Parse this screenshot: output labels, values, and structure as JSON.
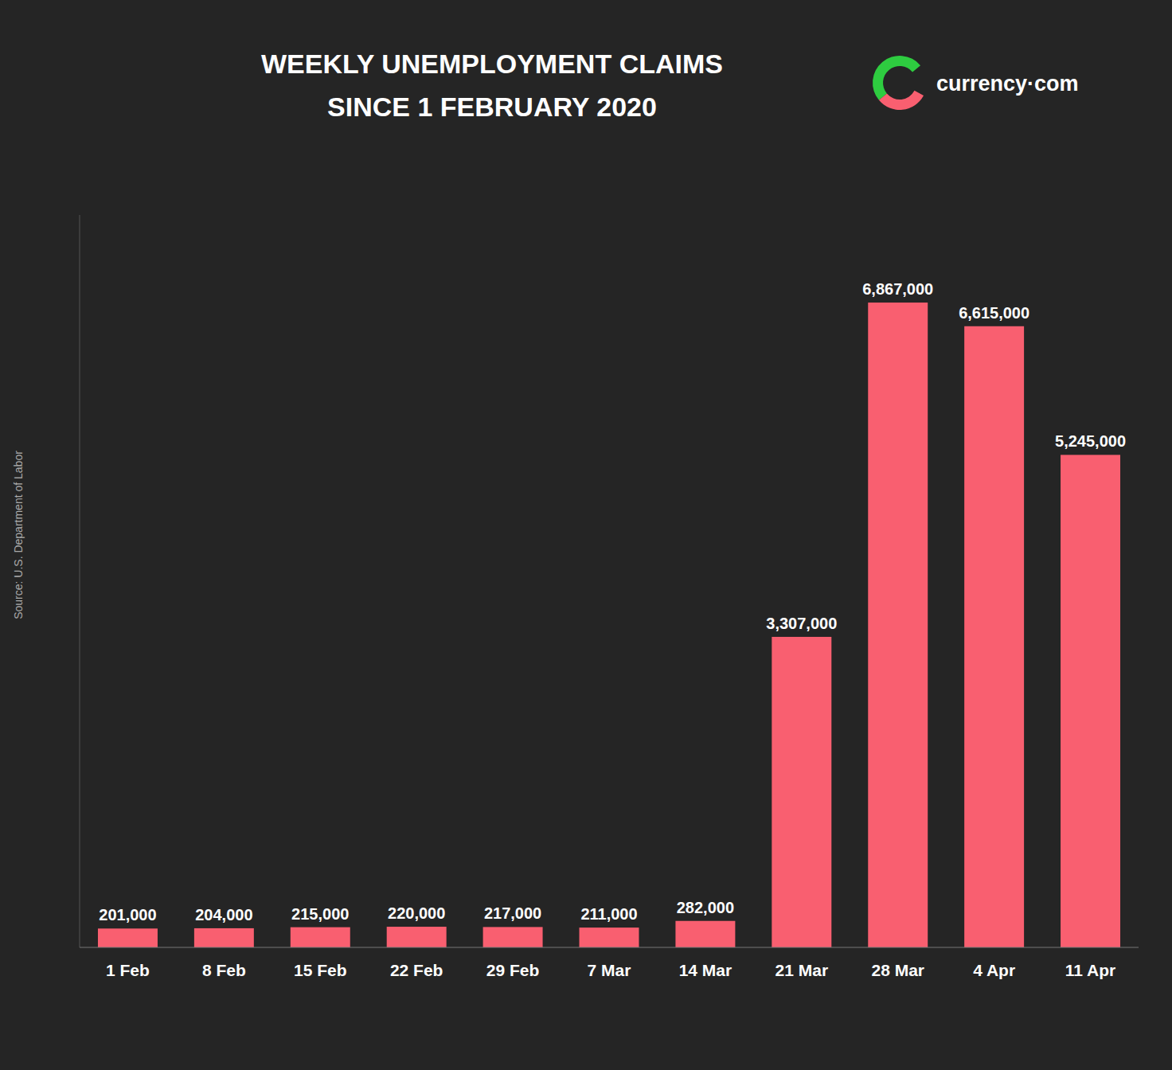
{
  "chart_data": {
    "type": "bar",
    "title": "WEEKLY UNEMPLOYMENT CLAIMS",
    "subtitle": "SINCE 1 FEBRUARY 2020",
    "categories": [
      "1 Feb",
      "8 Feb",
      "15 Feb",
      "22 Feb",
      "29 Feb",
      "7 Mar",
      "14 Mar",
      "21 Mar",
      "28 Mar",
      "4 Apr",
      "11 Apr"
    ],
    "values": [
      201000,
      204000,
      215000,
      220000,
      217000,
      211000,
      282000,
      3307000,
      6867000,
      6615000,
      5245000
    ],
    "value_labels": [
      "201,000",
      "204,000",
      "215,000",
      "220,000",
      "217,000",
      "211,000",
      "282,000",
      "3,307,000",
      "6,867,000",
      "6,615,000",
      "5,245,000"
    ],
    "color": "#f95f70",
    "ylim": [
      0,
      7800000
    ],
    "grid": false,
    "data_labels": true,
    "tick_labels": "x",
    "annotations": [
      "Source: U.S. Department of Labor",
      "currency·com"
    ]
  }
}
